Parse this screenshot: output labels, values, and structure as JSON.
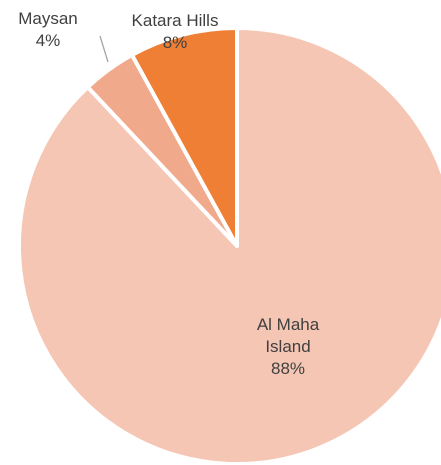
{
  "chart_data": {
    "type": "pie",
    "categories": [
      "Al Maha Island",
      "Maysan",
      "Katara Hills"
    ],
    "values": [
      88,
      4,
      8
    ],
    "value_labels": [
      "88%",
      "4%",
      "8%"
    ],
    "colors": [
      "#f5c6b4",
      "#f1a98c",
      "#ee7f35"
    ]
  }
}
